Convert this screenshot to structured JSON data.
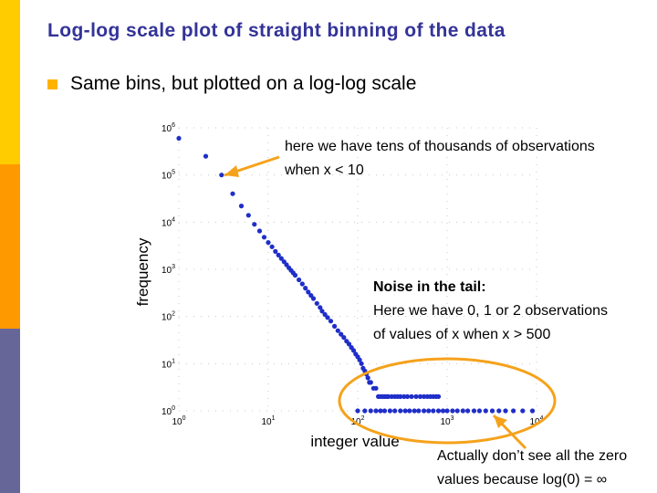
{
  "slide": {
    "title": "Log-log scale plot of straight binning of the data",
    "bullet": "Same bins, but plotted on a log-log scale",
    "colors": {
      "title": "#333399",
      "bullet": "#FFB300",
      "sidebar": [
        "#FFCC00",
        "#FF9900",
        "#666699"
      ],
      "points": "#1F2EC8",
      "annotation_stroke": "#F5A21B"
    }
  },
  "annotations": {
    "top_line1": "here we have tens of thousands of observations",
    "top_line2": "when x < 10",
    "noise_heading": "Noise in the tail:",
    "noise_line1": "Here we have 0, 1 or 2 observations",
    "noise_line2": "of values of x when x > 500",
    "zero_line1": "Actually don’t see all the zero",
    "zero_line2": "values because log(0) = ∞"
  },
  "chart_data": {
    "type": "scatter",
    "xscale": "log",
    "yscale": "log",
    "xlim": [
      1,
      10000
    ],
    "ylim": [
      1,
      1000000
    ],
    "xlabel": "integer value",
    "ylabel": "frequency",
    "x_ticks": [
      {
        "base": "10",
        "exp": "0"
      },
      {
        "base": "10",
        "exp": "1"
      },
      {
        "base": "10",
        "exp": "2"
      },
      {
        "base": "10",
        "exp": "3"
      },
      {
        "base": "10",
        "exp": "4"
      }
    ],
    "y_ticks": [
      {
        "base": "10",
        "exp": "0"
      },
      {
        "base": "10",
        "exp": "1"
      },
      {
        "base": "10",
        "exp": "2"
      },
      {
        "base": "10",
        "exp": "3"
      },
      {
        "base": "10",
        "exp": "4"
      },
      {
        "base": "10",
        "exp": "5"
      },
      {
        "base": "10",
        "exp": "6"
      }
    ],
    "series": [
      {
        "name": "straight binning",
        "points": [
          [
            1,
            600000
          ],
          [
            2,
            250000
          ],
          [
            3,
            100000
          ],
          [
            4,
            40000
          ],
          [
            5,
            22000
          ],
          [
            6,
            14000
          ],
          [
            7,
            9000
          ],
          [
            8,
            6500
          ],
          [
            9,
            4800
          ],
          [
            10,
            3700
          ],
          [
            11,
            3000
          ],
          [
            12,
            2400
          ],
          [
            13,
            2000
          ],
          [
            14,
            1700
          ],
          [
            15,
            1450
          ],
          [
            16,
            1250
          ],
          [
            17,
            1080
          ],
          [
            18,
            950
          ],
          [
            19,
            840
          ],
          [
            20,
            750
          ],
          [
            22,
            600
          ],
          [
            24,
            490
          ],
          [
            26,
            400
          ],
          [
            28,
            330
          ],
          [
            30,
            280
          ],
          [
            32,
            240
          ],
          [
            35,
            190
          ],
          [
            38,
            155
          ],
          [
            40,
            130
          ],
          [
            43,
            110
          ],
          [
            46,
            95
          ],
          [
            50,
            80
          ],
          [
            55,
            62
          ],
          [
            60,
            50
          ],
          [
            65,
            42
          ],
          [
            70,
            36
          ],
          [
            75,
            30
          ],
          [
            80,
            26
          ],
          [
            85,
            22
          ],
          [
            90,
            19
          ],
          [
            95,
            16
          ],
          [
            100,
            14
          ],
          [
            105,
            12
          ],
          [
            110,
            10
          ],
          [
            115,
            8
          ],
          [
            120,
            7
          ],
          [
            125,
            6
          ],
          [
            130,
            5
          ],
          [
            135,
            4
          ],
          [
            140,
            4
          ],
          [
            150,
            3
          ],
          [
            160,
            3
          ],
          [
            170,
            2
          ],
          [
            180,
            2
          ],
          [
            190,
            2
          ],
          [
            200,
            2
          ],
          [
            210,
            2
          ],
          [
            220,
            2
          ],
          [
            240,
            2
          ],
          [
            260,
            2
          ],
          [
            280,
            2
          ],
          [
            300,
            2
          ],
          [
            330,
            2
          ],
          [
            360,
            2
          ],
          [
            400,
            2
          ],
          [
            450,
            2
          ],
          [
            500,
            2
          ],
          [
            550,
            2
          ],
          [
            600,
            2
          ],
          [
            650,
            2
          ],
          [
            700,
            2
          ],
          [
            750,
            2
          ],
          [
            800,
            2
          ],
          [
            100,
            1
          ],
          [
            120,
            1
          ],
          [
            140,
            1
          ],
          [
            160,
            1
          ],
          [
            180,
            1
          ],
          [
            200,
            1
          ],
          [
            230,
            1
          ],
          [
            260,
            1
          ],
          [
            300,
            1
          ],
          [
            340,
            1
          ],
          [
            380,
            1
          ],
          [
            430,
            1
          ],
          [
            480,
            1
          ],
          [
            550,
            1
          ],
          [
            620,
            1
          ],
          [
            700,
            1
          ],
          [
            800,
            1
          ],
          [
            900,
            1
          ],
          [
            1000,
            1
          ],
          [
            1150,
            1
          ],
          [
            1300,
            1
          ],
          [
            1500,
            1
          ],
          [
            1700,
            1
          ],
          [
            2000,
            1
          ],
          [
            2300,
            1
          ],
          [
            2700,
            1
          ],
          [
            3200,
            1
          ],
          [
            3800,
            1
          ],
          [
            4500,
            1
          ],
          [
            5500,
            1
          ],
          [
            7000,
            1
          ],
          [
            9000,
            1
          ]
        ]
      }
    ]
  }
}
